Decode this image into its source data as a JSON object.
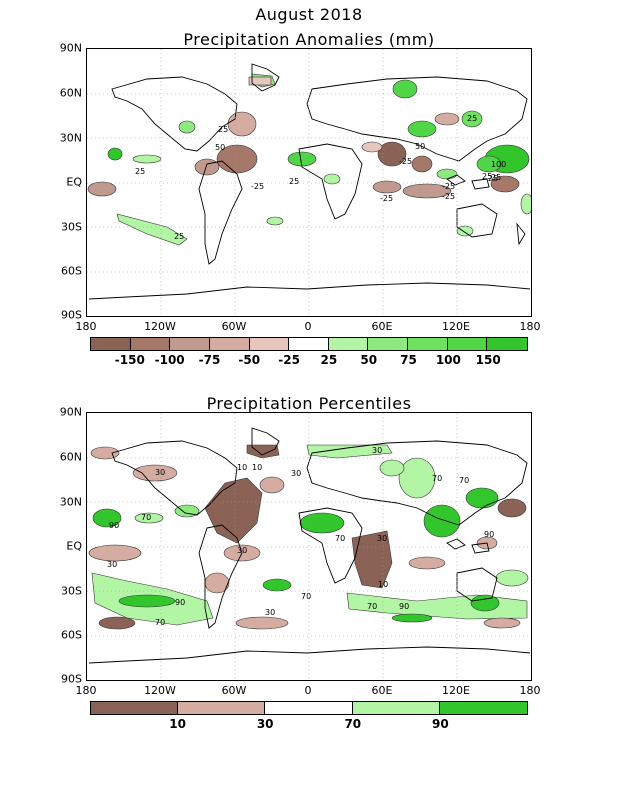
{
  "title": "August 2018",
  "panel1": {
    "title": "Precipitation Anomalies (mm)",
    "lat_labels": [
      "90N",
      "60N",
      "30N",
      "EQ",
      "30S",
      "60S",
      "90S"
    ],
    "lon_labels": [
      "180",
      "120W",
      "60W",
      "0",
      "60E",
      "120E",
      "180"
    ],
    "contour_labels": [
      "25",
      "50",
      "25",
      "-25",
      "25",
      "-25",
      "25",
      "25",
      "-25",
      "50",
      "100",
      "-25",
      "-25",
      "-25",
      "25",
      "25"
    ],
    "colorbar": {
      "colors": [
        "#8b6356",
        "#a5786a",
        "#c09a8e",
        "#d4aca1",
        "#e6c6bd",
        "#ffffff",
        "#b2f5a5",
        "#8eea80",
        "#6fe060",
        "#4fd545",
        "#32c62c"
      ],
      "ticks": [
        "-150",
        "-100",
        "-75",
        "-50",
        "-25",
        "25",
        "50",
        "75",
        "100",
        "150"
      ]
    }
  },
  "panel2": {
    "title": "Precipitation Percentiles",
    "lat_labels": [
      "90N",
      "60N",
      "30N",
      "EQ",
      "30S",
      "60S",
      "90S"
    ],
    "lon_labels": [
      "180",
      "120W",
      "60W",
      "0",
      "60E",
      "120E",
      "180"
    ],
    "contour_labels": [
      "30",
      "10",
      "30",
      "70",
      "90",
      "70",
      "30",
      "70",
      "30",
      "10",
      "90",
      "70",
      "70",
      "90",
      "30",
      "70",
      "30",
      "70",
      "90",
      "10",
      "30"
    ],
    "colorbar": {
      "colors": [
        "#8b6356",
        "#d4aca1",
        "#ffffff",
        "#b2f5a5",
        "#32c62c"
      ],
      "ticks": [
        "10",
        "30",
        "70",
        "90"
      ]
    }
  }
}
